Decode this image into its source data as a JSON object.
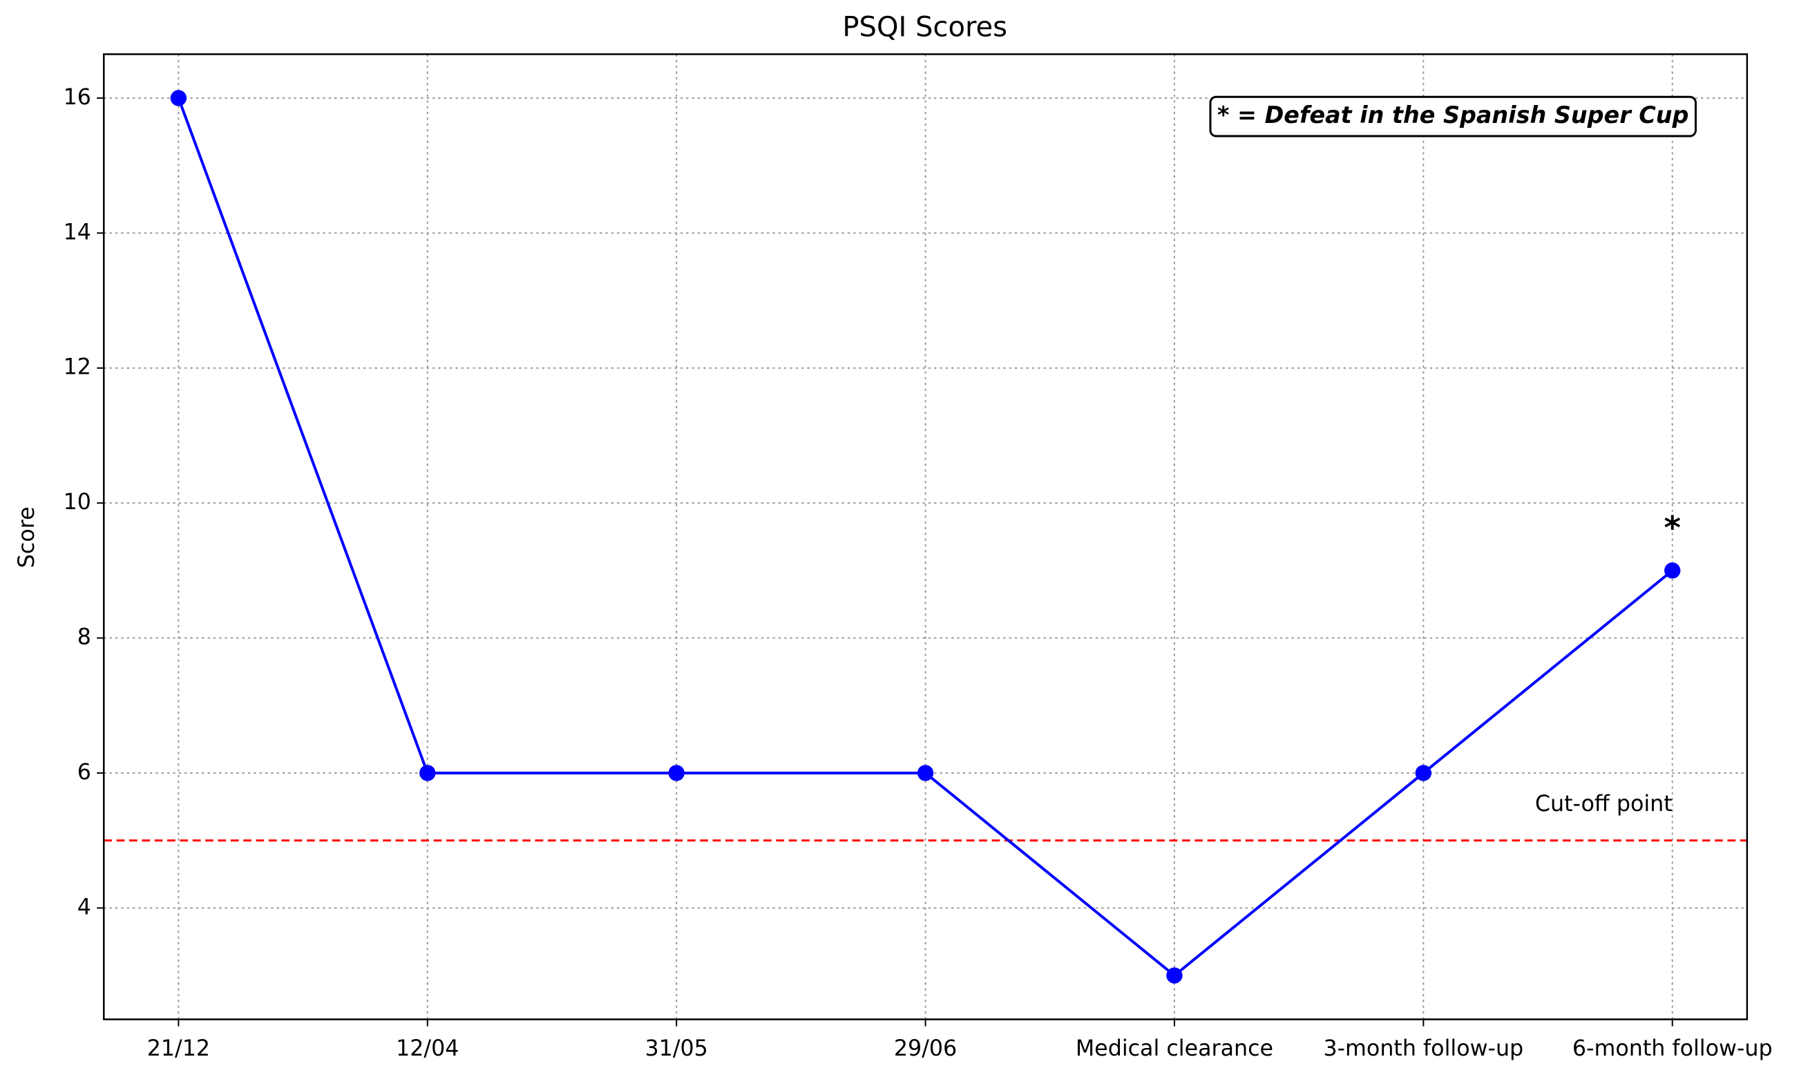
{
  "chart_data": {
    "type": "line",
    "title": "PSQI Scores",
    "y_label": "Score",
    "categories": [
      "21/12",
      "12/04",
      "31/05",
      "29/06",
      "Medical clearance",
      "3-month follow-up",
      "6-month follow-up"
    ],
    "series": [
      {
        "name": "PSQI",
        "color": "#0000ff",
        "values": [
          16,
          6,
          6,
          6,
          3,
          6,
          9
        ]
      }
    ],
    "ylim": [
      2.35,
      16.65
    ],
    "yticks": [
      4,
      6,
      8,
      10,
      12,
      14,
      16
    ],
    "grid": true,
    "reference_line": {
      "value": 5,
      "label": "Cut-off point",
      "color": "#ff0000"
    },
    "point_annotation": {
      "text": "*",
      "x": "6-month follow-up",
      "y": 9
    },
    "note_box": "* = Defeat in the Spanish Super Cup"
  }
}
